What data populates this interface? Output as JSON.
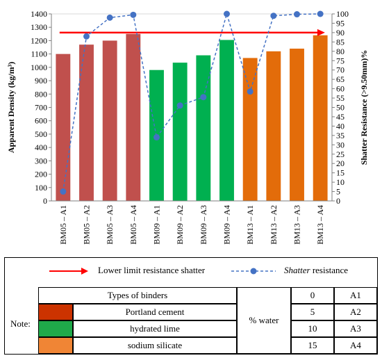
{
  "chart_data": {
    "type": "bar",
    "categories": [
      "BM05 – A1",
      "BM05 – A2",
      "BM05 – A3",
      "BM05 – A4",
      "BM09 – A1",
      "BM09 – A2",
      "BM09 – A3",
      "BM09 – A4",
      "BM13 – A1",
      "BM13 – A2",
      "BM13 – A3",
      "BM13 – A4"
    ],
    "series": [
      {
        "type": "bar",
        "values": [
          1100,
          1170,
          1200,
          1250,
          980,
          1035,
          1090,
          1205,
          1070,
          1120,
          1140,
          1240
        ],
        "colors": [
          "#c0504d",
          "#c0504d",
          "#c0504d",
          "#c0504d",
          "#00b050",
          "#00b050",
          "#00b050",
          "#00b050",
          "#e36c0a",
          "#e36c0a",
          "#e36c0a",
          "#e36c0a"
        ]
      },
      {
        "type": "line",
        "axis": "right",
        "name": "Shatter resistance",
        "values": [
          5,
          88,
          98,
          99.5,
          34,
          51,
          55.5,
          100,
          58.5,
          99,
          99.8,
          100
        ],
        "color": "#4472c4"
      }
    ],
    "reference_line": {
      "name": "Lower limit resistance shatter",
      "value": 90,
      "axis": "right",
      "color": "#ff0000"
    },
    "ylabel": "Apparent Density (kg/m³)",
    "y2label": "Shatter Resistance (>9.50mm)%",
    "ylim": [
      0,
      1400
    ],
    "ytick_step": 100,
    "y2lim": [
      0,
      100
    ],
    "y2tick_step": 5,
    "grid": false
  },
  "note": {
    "label": "Note:",
    "legend_limit": "Lower limit resistance shatter",
    "legend_shatter_italic": "Shatter",
    "legend_shatter_rest": " resistance",
    "binders_header": "Types of binders",
    "binders": [
      {
        "name": "Portland cement",
        "color": "#cc3300"
      },
      {
        "name": "hydrated lime",
        "color": "#1faa4a"
      },
      {
        "name": "sodium silicate",
        "color": "#f08535"
      }
    ],
    "water_label": "% water",
    "water_table": [
      {
        "pct": "0",
        "code": "A1"
      },
      {
        "pct": "5",
        "code": "A2"
      },
      {
        "pct": "10",
        "code": "A3"
      },
      {
        "pct": "15",
        "code": "A4"
      }
    ]
  }
}
